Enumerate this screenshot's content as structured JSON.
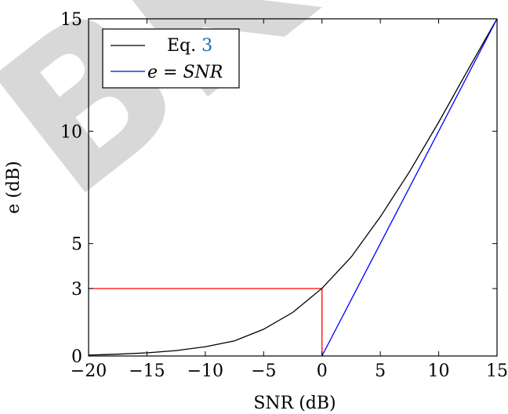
{
  "watermark": {
    "text": "BK",
    "color": "#d4d4d4"
  },
  "chart_data": {
    "type": "line",
    "title": "",
    "xlabel": "SNR (dB)",
    "ylabel": "e (dB)",
    "xlim": [
      -20,
      15
    ],
    "ylim": [
      0,
      15
    ],
    "x_ticks": [
      -20,
      -15,
      -10,
      -5,
      0,
      5,
      10,
      15
    ],
    "x_tick_labels": [
      "−20",
      "−15",
      "−10",
      "−5",
      "0",
      "5",
      "10",
      "15"
    ],
    "y_ticks": [
      0,
      3,
      5,
      10,
      15
    ],
    "y_tick_labels": [
      "0",
      "3",
      "5",
      "10",
      "15"
    ],
    "grid": false,
    "legend_position": "top-left",
    "series": [
      {
        "name": "Eq. 3",
        "legend": {
          "prefix": "Eq. ",
          "ref": "3"
        },
        "color": "#000000",
        "x": [
          -20,
          -17.5,
          -15,
          -12.5,
          -10,
          -7.5,
          -5,
          -2.5,
          0,
          2.5,
          5,
          7.5,
          10,
          12.5,
          15
        ],
        "y": [
          0.04,
          0.08,
          0.14,
          0.24,
          0.41,
          0.67,
          1.19,
          1.94,
          3.01,
          4.4,
          6.19,
          8.2,
          10.4,
          12.72,
          15.0
        ]
      },
      {
        "name": "e = SNR",
        "legend": {
          "math": "e = SNR"
        },
        "color": "#0000ff",
        "x": [
          0,
          15
        ],
        "y": [
          0,
          15
        ]
      }
    ],
    "annotations": [
      {
        "type": "marker-lines",
        "color": "#ff0000",
        "x": 0,
        "y": 3
      }
    ]
  }
}
